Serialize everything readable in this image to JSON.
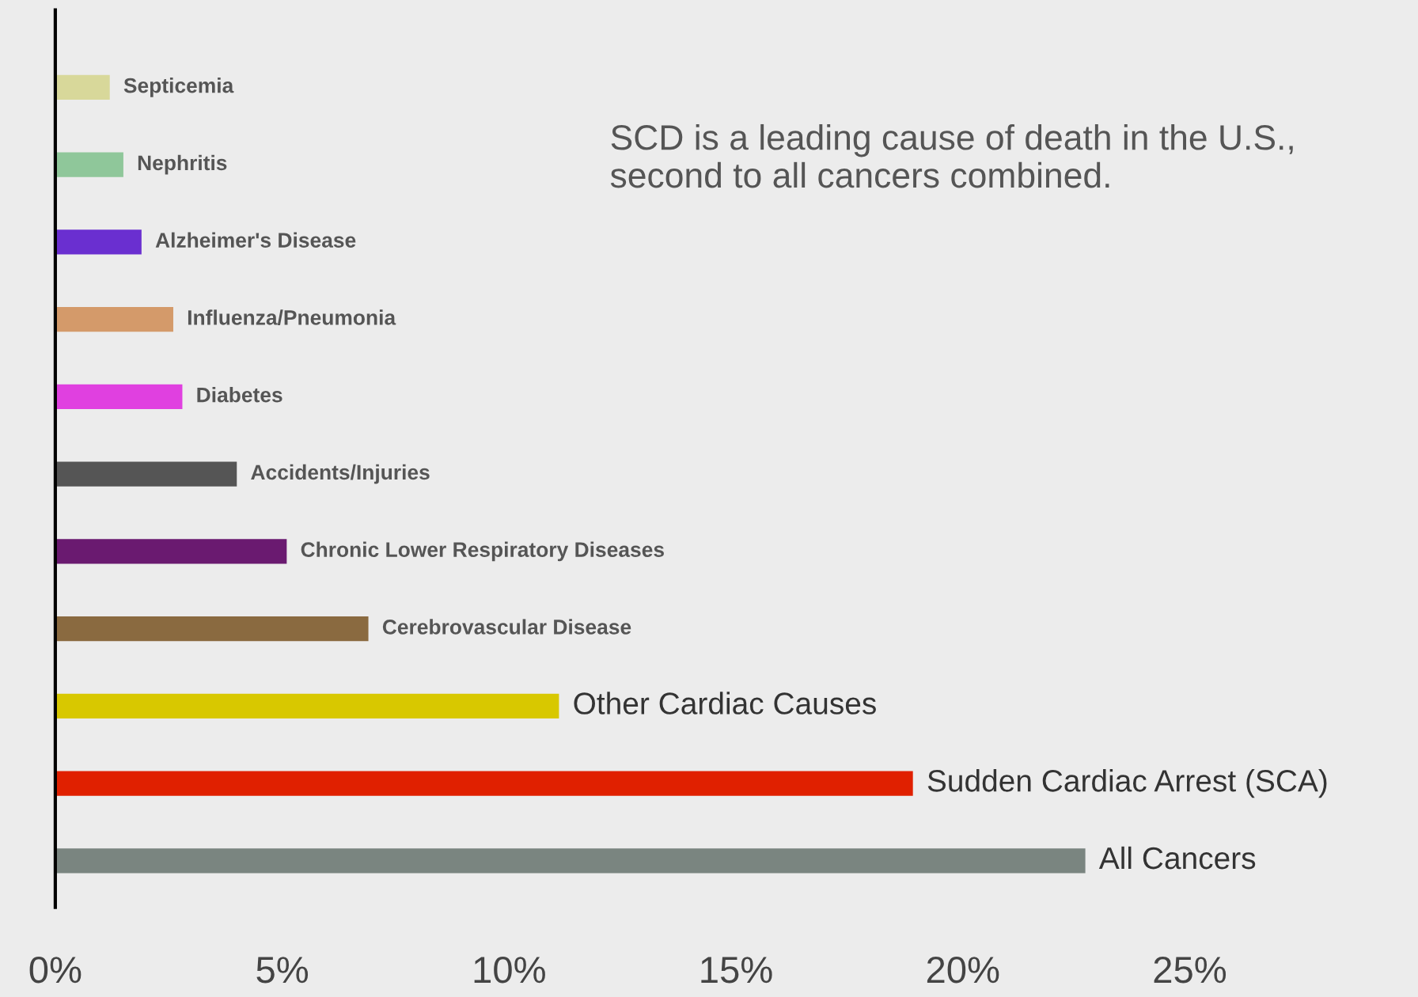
{
  "chart_data": {
    "type": "bar",
    "orientation": "horizontal",
    "categories": [
      "Septicemia",
      "Nephritis",
      "Alzheimer's Disease",
      "Influenza/Pneumonia",
      "Diabetes",
      "Accidents/Injuries",
      "Chronic Lower Respiratory Diseases",
      "Cerebrovascular Disease",
      "Other Cardiac Causes",
      "Sudden Cardiac Arrest (SCA)",
      "All Cancers"
    ],
    "values": [
      1.2,
      1.5,
      1.9,
      2.6,
      2.8,
      4.0,
      5.1,
      6.9,
      11.1,
      18.9,
      22.7
    ],
    "colors": [
      "#d8d89a",
      "#8fc79a",
      "#6a2fd0",
      "#d49a6a",
      "#e040e0",
      "#555555",
      "#6a1a70",
      "#8a6a40",
      "#d8c800",
      "#e02000",
      "#7a8580"
    ],
    "xlim": [
      0,
      30
    ],
    "xticks": [
      {
        "value": 0,
        "label": "0%"
      },
      {
        "value": 5,
        "label": "5%"
      },
      {
        "value": 10,
        "label": "10%"
      },
      {
        "value": 15,
        "label": "15%"
      },
      {
        "value": 20,
        "label": "20%"
      },
      {
        "value": 25,
        "label": "25%"
      }
    ],
    "annotations": [
      "SCD is a leading cause of death in the U.S., second to all cancers combined."
    ],
    "grid": false,
    "legend": false
  }
}
